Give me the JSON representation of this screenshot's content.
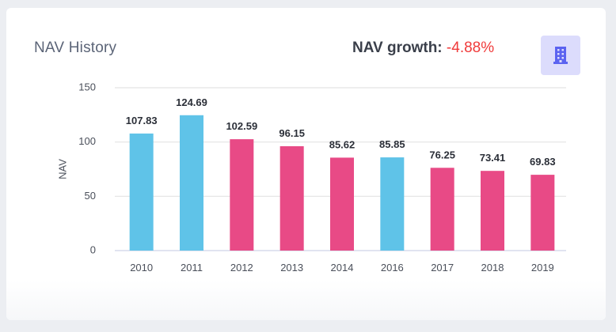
{
  "card": {
    "title": "NAV History",
    "growth_label": "NAV growth:",
    "growth_value": "-4.88%",
    "growth_color": "#f03a3a",
    "icon": "building-icon",
    "icon_bg": "#dcdcfc",
    "icon_color": "#5b63f0"
  },
  "chart_data": {
    "type": "bar",
    "title": "NAV History",
    "xlabel": "",
    "ylabel": "NAV",
    "ylim": [
      0,
      150
    ],
    "yticks": [
      0,
      50,
      100,
      150
    ],
    "grid": true,
    "categories": [
      "2010",
      "2011",
      "2012",
      "2013",
      "2014",
      "2016",
      "2017",
      "2018",
      "2019"
    ],
    "values": [
      107.83,
      124.69,
      102.59,
      96.15,
      85.62,
      85.85,
      76.25,
      73.41,
      69.83
    ],
    "data_labels": [
      "107.83",
      "124.69",
      "102.59",
      "96.15",
      "85.62",
      "85.85",
      "76.25",
      "73.41",
      "69.83"
    ],
    "bar_colors": [
      "#5fc3e8",
      "#5fc3e8",
      "#e84a86",
      "#e84a86",
      "#e84a86",
      "#5fc3e8",
      "#e84a86",
      "#e84a86",
      "#e84a86"
    ],
    "color_meaning": {
      "#5fc3e8": "increase",
      "#e84a86": "decrease"
    }
  }
}
